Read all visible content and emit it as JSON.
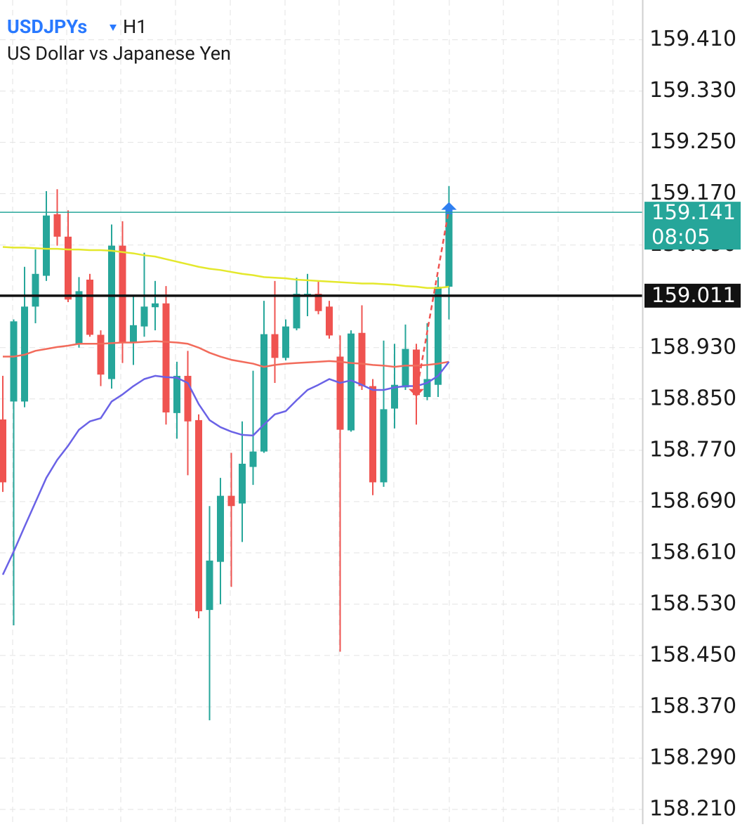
{
  "chart_data": {
    "type": "candlestick",
    "title": "USDJPYs",
    "timeframe": "H1",
    "subtitle": "US Dollar vs Japanese Yen",
    "ylim": [
      158.187,
      159.472
    ],
    "yticks": [
      {
        "value": 158.21,
        "label": "158.210"
      },
      {
        "value": 158.29,
        "label": "158.290"
      },
      {
        "value": 158.37,
        "label": "158.370"
      },
      {
        "value": 158.45,
        "label": "158.450"
      },
      {
        "value": 158.53,
        "label": "158.530"
      },
      {
        "value": 158.61,
        "label": "158.610"
      },
      {
        "value": 158.69,
        "label": "158.690"
      },
      {
        "value": 158.77,
        "label": "158.770"
      },
      {
        "value": 158.85,
        "label": "158.850"
      },
      {
        "value": 158.93,
        "label": "158.930"
      },
      {
        "value": 159.01,
        "label": "159.010"
      },
      {
        "value": 159.09,
        "label": "159.090"
      },
      {
        "value": 159.17,
        "label": "159.170"
      },
      {
        "value": 159.25,
        "label": "159.250"
      },
      {
        "value": 159.33,
        "label": "159.330"
      },
      {
        "value": 159.41,
        "label": "159.410"
      }
    ],
    "grid": true,
    "up_color": "#26a69a",
    "down_color": "#ef5350",
    "open": [
      158.818,
      158.846,
      158.846,
      158.994,
      159.042,
      159.138,
      159.103,
      158.936,
      159.036,
      158.95,
      158.881,
      159.089,
      158.939,
      158.963,
      158.993,
      158.999,
      158.828,
      158.886,
      158.817,
      158.521,
      158.596,
      158.699,
      158.687,
      158.744,
      158.768,
      158.951,
      158.914,
      158.96,
      159.012,
      159.014,
      158.994,
      158.916,
      158.801,
      158.953,
      158.87,
      158.72,
      158.835,
      158.868,
      158.927,
      158.853,
      158.872,
      159.025
    ],
    "high": [
      158.886,
      158.974,
      159.056,
      159.083,
      159.174,
      159.177,
      159.144,
      159.04,
      159.045,
      158.957,
      159.122,
      159.127,
      159.012,
      159.078,
      159.034,
      159.026,
      158.908,
      158.925,
      158.826,
      158.683,
      158.727,
      158.766,
      158.815,
      158.894,
      159.003,
      159.034,
      158.974,
      159.039,
      159.045,
      159.034,
      159.003,
      158.949,
      158.957,
      158.996,
      158.881,
      158.941,
      158.936,
      158.966,
      158.936,
      158.968,
      159.04,
      159.182
    ],
    "low": [
      158.705,
      158.497,
      158.837,
      158.968,
      159.034,
      159.089,
      159.001,
      158.93,
      158.947,
      158.87,
      158.866,
      158.906,
      158.903,
      158.947,
      158.957,
      158.81,
      158.788,
      158.731,
      158.508,
      158.349,
      158.53,
      158.557,
      158.627,
      158.716,
      158.766,
      158.875,
      158.91,
      158.957,
      158.979,
      158.982,
      158.944,
      158.456,
      158.799,
      158.864,
      158.7,
      158.713,
      158.804,
      158.864,
      158.81,
      158.848,
      158.853,
      158.974
    ],
    "close": [
      158.72,
      158.971,
      158.994,
      159.045,
      159.136,
      159.103,
      159.005,
      159.018,
      158.95,
      158.888,
      159.089,
      158.939,
      158.965,
      158.994,
      158.999,
      158.829,
      158.886,
      158.815,
      158.519,
      158.598,
      158.699,
      158.683,
      158.749,
      158.768,
      158.951,
      158.914,
      158.963,
      159.014,
      159.014,
      158.987,
      158.949,
      158.802,
      158.952,
      158.87,
      158.72,
      158.834,
      158.872,
      158.928,
      158.856,
      158.881,
      159.025,
      159.141
    ],
    "moving_averages": [
      {
        "color": "#e4e82c",
        "values": [
          159.087,
          159.086,
          159.086,
          159.085,
          159.084,
          159.084,
          159.083,
          159.083,
          159.082,
          159.082,
          159.081,
          159.079,
          159.077,
          159.074,
          159.072,
          159.068,
          159.064,
          159.06,
          159.056,
          159.053,
          159.051,
          159.048,
          159.045,
          159.043,
          159.04,
          159.039,
          159.038,
          159.036,
          159.035,
          159.034,
          159.033,
          159.032,
          159.031,
          159.03,
          159.03,
          159.029,
          159.028,
          159.026,
          159.025,
          159.023,
          159.023,
          159.025
        ]
      },
      {
        "color": "#f26b5b",
        "values": [
          158.916,
          158.916,
          158.919,
          158.925,
          158.928,
          158.931,
          158.933,
          158.936,
          158.936,
          158.936,
          158.937,
          158.938,
          158.938,
          158.939,
          158.94,
          158.939,
          158.938,
          158.936,
          158.93,
          158.922,
          158.916,
          158.911,
          158.908,
          158.905,
          158.9,
          158.903,
          158.905,
          158.906,
          158.907,
          158.908,
          158.909,
          158.908,
          158.906,
          158.905,
          158.903,
          158.902,
          158.9,
          158.902,
          158.902,
          158.903,
          158.905,
          158.908
        ]
      },
      {
        "color": "#6a62e6",
        "values": [
          158.576,
          158.612,
          158.651,
          158.689,
          158.727,
          158.755,
          158.777,
          158.802,
          158.815,
          158.82,
          158.846,
          158.857,
          158.87,
          158.881,
          158.886,
          158.884,
          158.883,
          158.875,
          158.842,
          158.817,
          158.806,
          158.799,
          158.794,
          158.793,
          158.81,
          158.826,
          158.831,
          158.848,
          158.864,
          158.872,
          158.881,
          158.875,
          158.879,
          158.872,
          158.864,
          158.864,
          158.868,
          158.87,
          158.87,
          158.875,
          158.886,
          158.908
        ]
      }
    ],
    "levels": [
      {
        "value": 159.011,
        "color": "#111111"
      },
      {
        "value": 159.141,
        "color": "#26a69a",
        "countdown": "08:05"
      }
    ],
    "trade": {
      "entry": 158.859,
      "exit": 159.146,
      "entry_color": "#ef5350",
      "exit_color": "#2f7ff0"
    }
  }
}
